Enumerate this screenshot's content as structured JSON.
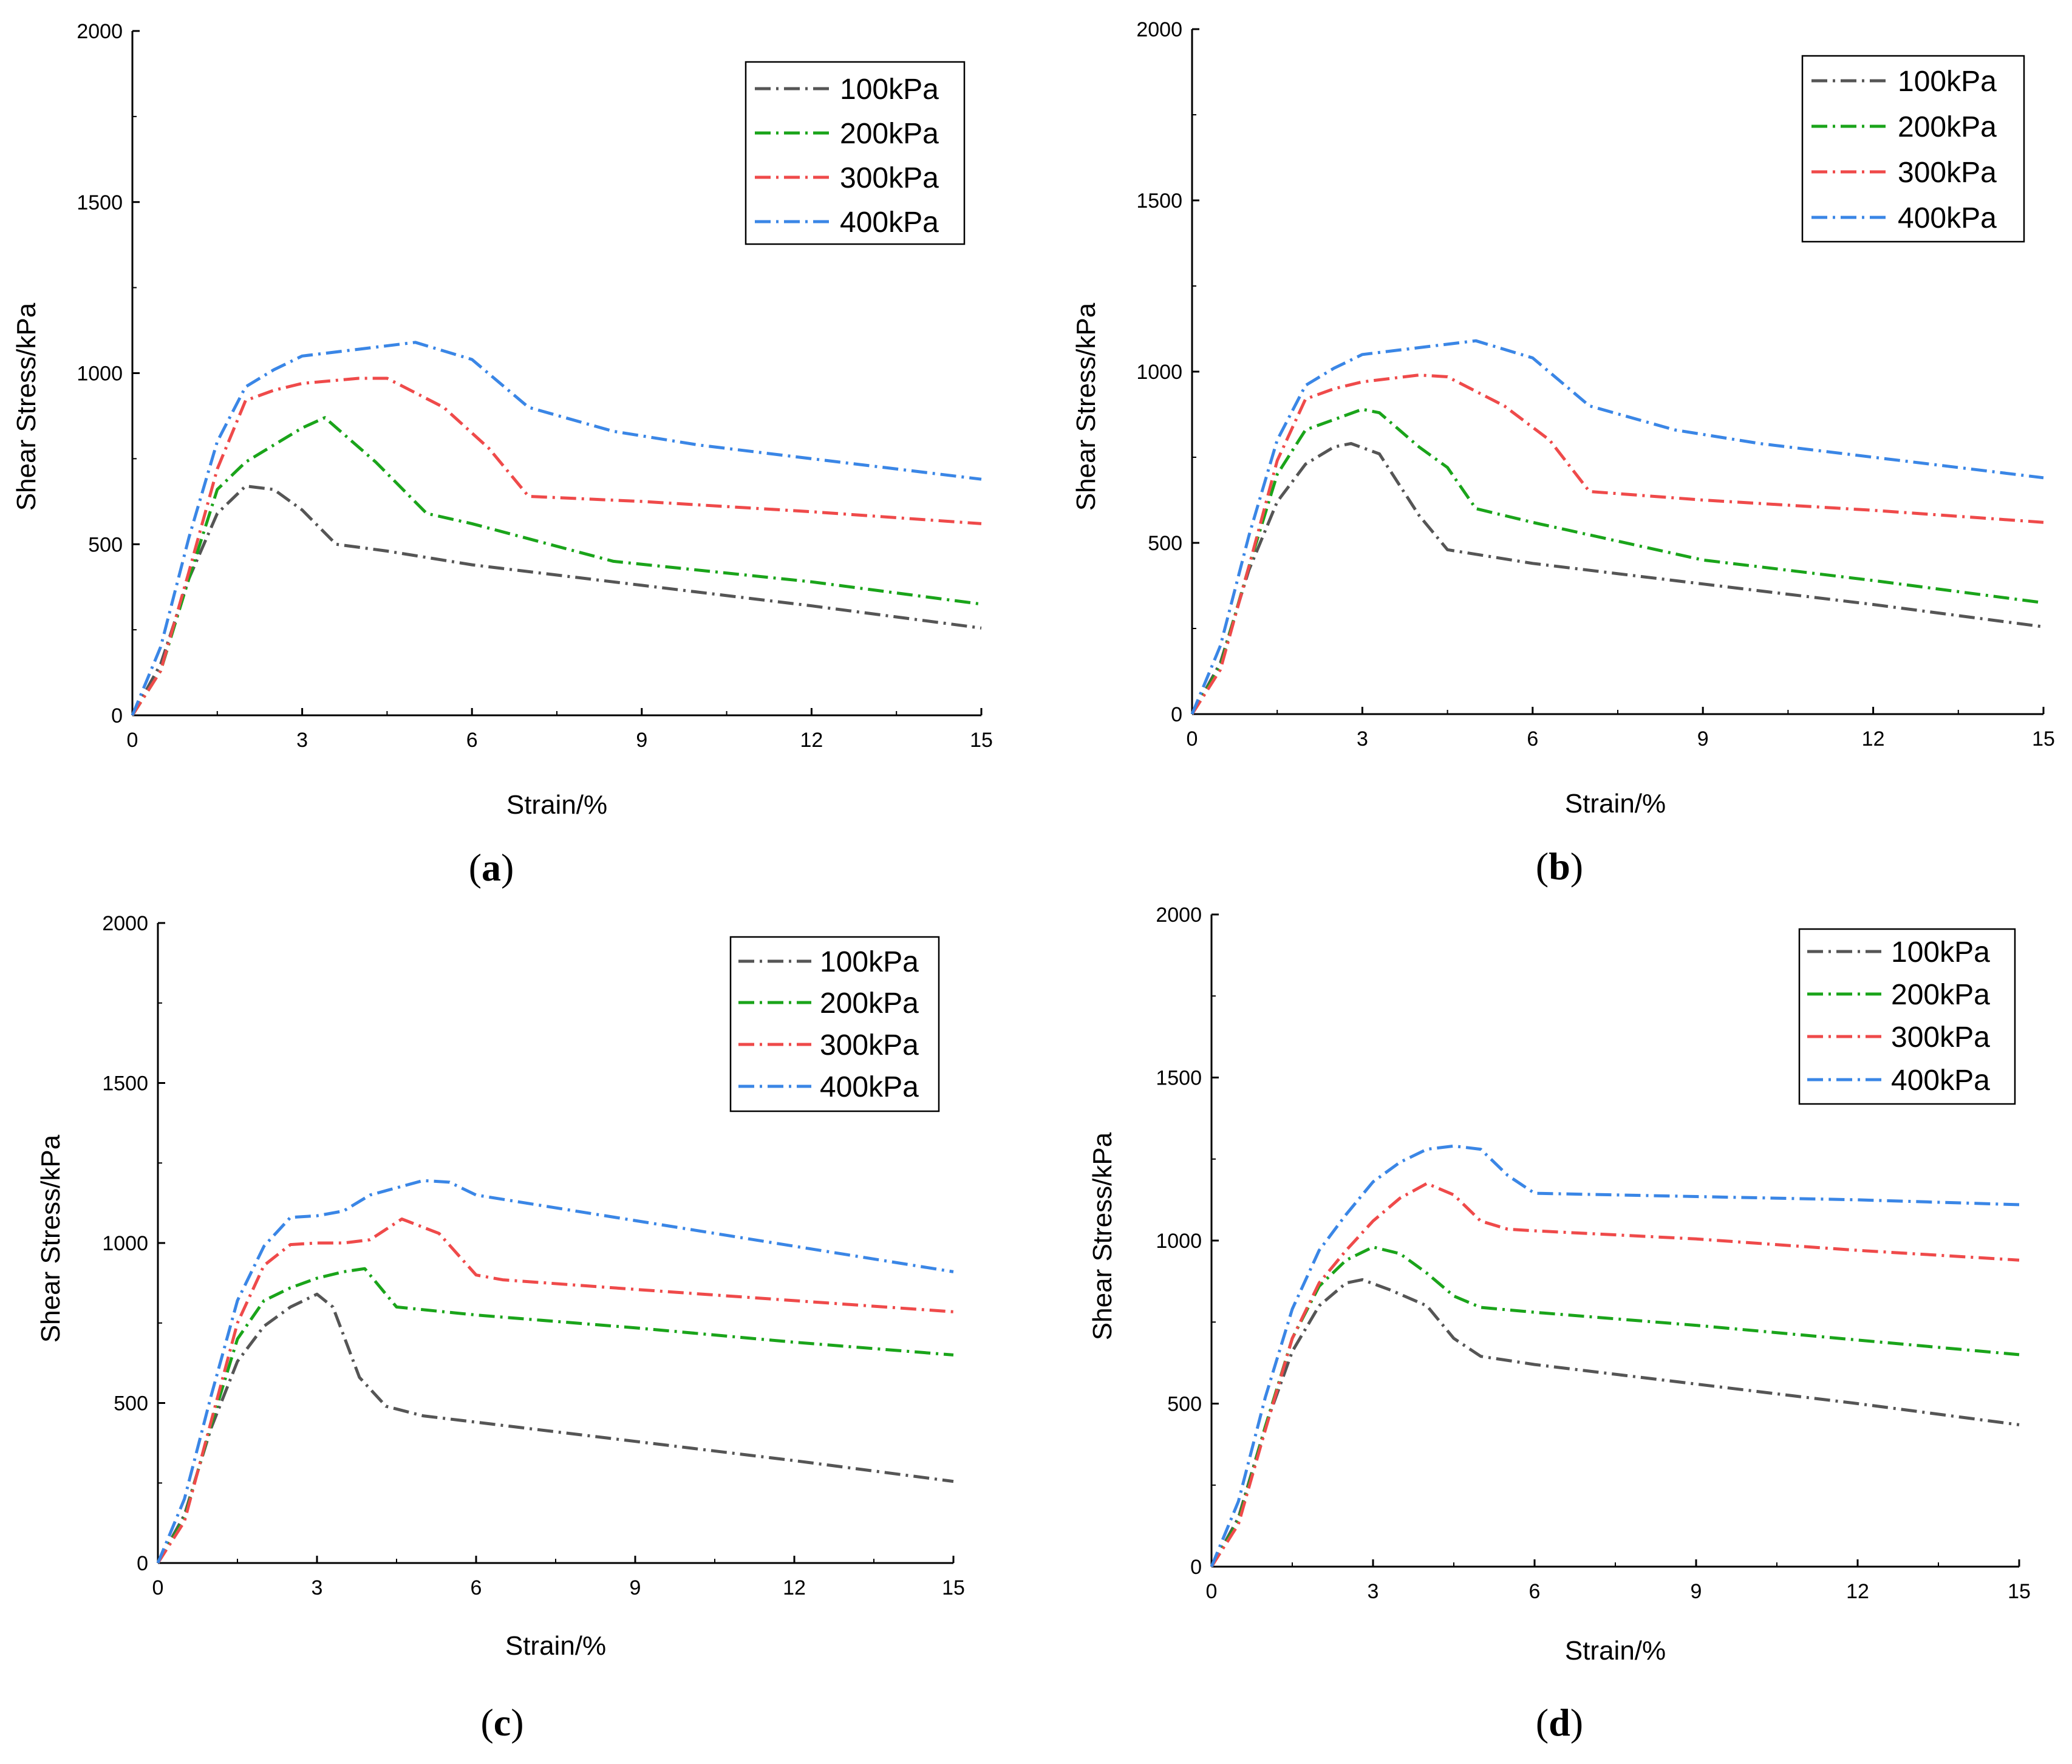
{
  "figure": {
    "panels": [
      {
        "caption_open": "(",
        "caption_letter": "a",
        "caption_close": ")"
      },
      {
        "caption_open": "(",
        "caption_letter": "b",
        "caption_close": ")"
      },
      {
        "caption_open": "(",
        "caption_letter": "c",
        "caption_close": ")"
      },
      {
        "caption_open": "(",
        "caption_letter": "d",
        "caption_close": ")"
      }
    ]
  },
  "colors": {
    "100kPa": "#555555",
    "200kPa": "#1aa41a",
    "300kPa": "#ef4a4a",
    "400kPa": "#3a86e6",
    "axis": "#000000"
  },
  "chart_data": [
    {
      "type": "line",
      "title": "(a)",
      "xlabel": "Strain/%",
      "ylabel": "Shear Stress/kPa",
      "xlim": [
        0,
        15
      ],
      "ylim": [
        0,
        2000
      ],
      "xticks": [
        0,
        3,
        6,
        9,
        12,
        15
      ],
      "yticks": [
        0,
        500,
        1000,
        1500,
        2000
      ],
      "legend": "top-right",
      "series": [
        {
          "name": "100kPa",
          "x": [
            0,
            0.5,
            1.0,
            1.5,
            2.0,
            2.5,
            3.0,
            3.6,
            4.5,
            6.0,
            9.0,
            12.0,
            15.0
          ],
          "y": [
            0,
            150,
            400,
            590,
            670,
            660,
            600,
            500,
            480,
            440,
            380,
            320,
            255
          ]
        },
        {
          "name": "200kPa",
          "x": [
            0,
            0.5,
            1.0,
            1.5,
            2.0,
            2.5,
            3.0,
            3.4,
            4.3,
            5.2,
            6.0,
            8.5,
            12.0,
            15.0
          ],
          "y": [
            0,
            130,
            400,
            660,
            740,
            790,
            840,
            870,
            740,
            590,
            560,
            450,
            390,
            325
          ]
        },
        {
          "name": "300kPa",
          "x": [
            0,
            0.5,
            1.0,
            1.5,
            2.0,
            2.5,
            3.0,
            4.0,
            4.5,
            5.5,
            6.3,
            7.0,
            9.0,
            12.0,
            15.0
          ],
          "y": [
            0,
            130,
            420,
            720,
            920,
            950,
            970,
            985,
            985,
            900,
            780,
            640,
            625,
            595,
            560
          ]
        },
        {
          "name": "400kPa",
          "x": [
            0,
            0.5,
            1.0,
            1.5,
            2.0,
            2.5,
            3.0,
            4.0,
            5.0,
            6.0,
            7.0,
            8.5,
            10.0,
            12.0,
            15.0
          ],
          "y": [
            0,
            200,
            520,
            800,
            960,
            1010,
            1050,
            1070,
            1090,
            1040,
            900,
            830,
            790,
            750,
            690
          ]
        }
      ]
    },
    {
      "type": "line",
      "title": "(b)",
      "xlabel": "Strain/%",
      "ylabel": "Shear Stress/kPa",
      "xlim": [
        0,
        15
      ],
      "ylim": [
        0,
        2000
      ],
      "xticks": [
        0,
        3,
        6,
        9,
        12,
        15
      ],
      "yticks": [
        0,
        500,
        1000,
        1500,
        2000
      ],
      "legend": "top-right",
      "series": [
        {
          "name": "100kPa",
          "x": [
            0,
            0.5,
            1.0,
            1.5,
            2.0,
            2.5,
            2.8,
            3.3,
            4.0,
            4.5,
            6.0,
            9.0,
            12.0,
            15.0
          ],
          "y": [
            0,
            150,
            420,
            620,
            730,
            780,
            790,
            760,
            580,
            480,
            440,
            380,
            320,
            255
          ]
        },
        {
          "name": "200kPa",
          "x": [
            0,
            0.5,
            1.0,
            1.5,
            2.0,
            2.5,
            3.0,
            3.3,
            4.0,
            4.5,
            5.0,
            6.0,
            9.0,
            12.0,
            15.0
          ],
          "y": [
            0,
            140,
            430,
            700,
            830,
            860,
            890,
            880,
            780,
            720,
            600,
            560,
            450,
            390,
            325
          ]
        },
        {
          "name": "300kPa",
          "x": [
            0,
            0.5,
            1.0,
            1.5,
            2.0,
            2.5,
            3.0,
            4.0,
            4.5,
            5.5,
            6.3,
            7.0,
            9.0,
            12.0,
            15.0
          ],
          "y": [
            0,
            130,
            430,
            740,
            920,
            950,
            970,
            990,
            985,
            900,
            800,
            650,
            625,
            595,
            560
          ]
        },
        {
          "name": "400kPa",
          "x": [
            0,
            0.5,
            1.0,
            1.5,
            2.0,
            2.5,
            3.0,
            4.0,
            5.0,
            6.0,
            7.0,
            8.5,
            10.0,
            12.0,
            15.0
          ],
          "y": [
            0,
            200,
            520,
            800,
            960,
            1010,
            1050,
            1070,
            1090,
            1040,
            900,
            830,
            790,
            750,
            690
          ]
        }
      ]
    },
    {
      "type": "line",
      "title": "(c)",
      "xlabel": "Strain/%",
      "ylabel": "Shear Stress/kPa",
      "xlim": [
        0,
        15
      ],
      "ylim": [
        0,
        2000
      ],
      "xticks": [
        0,
        3,
        6,
        9,
        12,
        15
      ],
      "yticks": [
        0,
        500,
        1000,
        1500,
        2000
      ],
      "legend": "top-right",
      "series": [
        {
          "name": "100kPa",
          "x": [
            0,
            0.5,
            1.0,
            1.5,
            2.0,
            2.5,
            3.0,
            3.3,
            3.8,
            4.3,
            5.0,
            6.0,
            9.0,
            12.0,
            15.0
          ],
          "y": [
            0,
            150,
            420,
            630,
            740,
            800,
            840,
            800,
            580,
            490,
            460,
            440,
            380,
            320,
            255
          ]
        },
        {
          "name": "200kPa",
          "x": [
            0,
            0.5,
            1.0,
            1.5,
            2.0,
            2.5,
            3.0,
            3.5,
            3.9,
            4.5,
            6.0,
            9.0,
            12.0,
            15.0
          ],
          "y": [
            0,
            140,
            430,
            700,
            820,
            860,
            890,
            910,
            920,
            800,
            775,
            735,
            690,
            650
          ]
        },
        {
          "name": "300kPa",
          "x": [
            0,
            0.5,
            1.0,
            1.5,
            2.0,
            2.5,
            3.0,
            3.5,
            4.0,
            4.6,
            5.3,
            6.0,
            6.5,
            9.0,
            12.0,
            15.0
          ],
          "y": [
            0,
            130,
            440,
            750,
            930,
            995,
            1000,
            1000,
            1010,
            1075,
            1030,
            900,
            885,
            855,
            820,
            785
          ]
        },
        {
          "name": "400kPa",
          "x": [
            0,
            0.5,
            1.0,
            1.5,
            2.0,
            2.5,
            3.0,
            3.5,
            4.0,
            5.0,
            5.5,
            6.0,
            9.0,
            12.0,
            15.0
          ],
          "y": [
            0,
            200,
            520,
            820,
            990,
            1080,
            1085,
            1100,
            1150,
            1195,
            1190,
            1150,
            1070,
            990,
            910
          ]
        }
      ]
    },
    {
      "type": "line",
      "title": "(d)",
      "xlabel": "Strain/%",
      "ylabel": "Shear Stress/kPa",
      "xlim": [
        0,
        15
      ],
      "ylim": [
        0,
        2000
      ],
      "xticks": [
        0,
        3,
        6,
        9,
        12,
        15
      ],
      "yticks": [
        0,
        500,
        1000,
        1500,
        2000
      ],
      "legend": "top-right",
      "series": [
        {
          "name": "100kPa",
          "x": [
            0,
            0.5,
            1.0,
            1.5,
            2.0,
            2.5,
            2.8,
            3.3,
            4.0,
            4.5,
            5.0,
            6.0,
            9.0,
            12.0,
            15.0
          ],
          "y": [
            0,
            150,
            430,
            660,
            800,
            870,
            880,
            850,
            800,
            700,
            645,
            620,
            560,
            500,
            435
          ]
        },
        {
          "name": "200kPa",
          "x": [
            0,
            0.5,
            1.0,
            1.5,
            2.0,
            2.5,
            3.0,
            3.5,
            4.0,
            4.5,
            5.0,
            6.0,
            9.0,
            12.0,
            15.0
          ],
          "y": [
            0,
            140,
            430,
            700,
            860,
            940,
            980,
            960,
            900,
            830,
            795,
            780,
            740,
            695,
            650
          ]
        },
        {
          "name": "300kPa",
          "x": [
            0,
            0.5,
            1.0,
            1.5,
            2.0,
            2.5,
            3.0,
            3.5,
            4.0,
            4.5,
            5.0,
            5.5,
            6.0,
            9.0,
            12.0,
            15.0
          ],
          "y": [
            0,
            130,
            420,
            700,
            870,
            970,
            1060,
            1130,
            1175,
            1140,
            1060,
            1035,
            1030,
            1005,
            970,
            940
          ]
        },
        {
          "name": "400kPa",
          "x": [
            0,
            0.5,
            1.0,
            1.5,
            2.0,
            2.5,
            3.0,
            3.5,
            4.0,
            4.5,
            5.0,
            5.5,
            6.0,
            9.0,
            12.0,
            15.0
          ],
          "y": [
            0,
            200,
            520,
            790,
            970,
            1080,
            1180,
            1240,
            1280,
            1290,
            1280,
            1200,
            1145,
            1135,
            1125,
            1110
          ]
        }
      ]
    }
  ]
}
